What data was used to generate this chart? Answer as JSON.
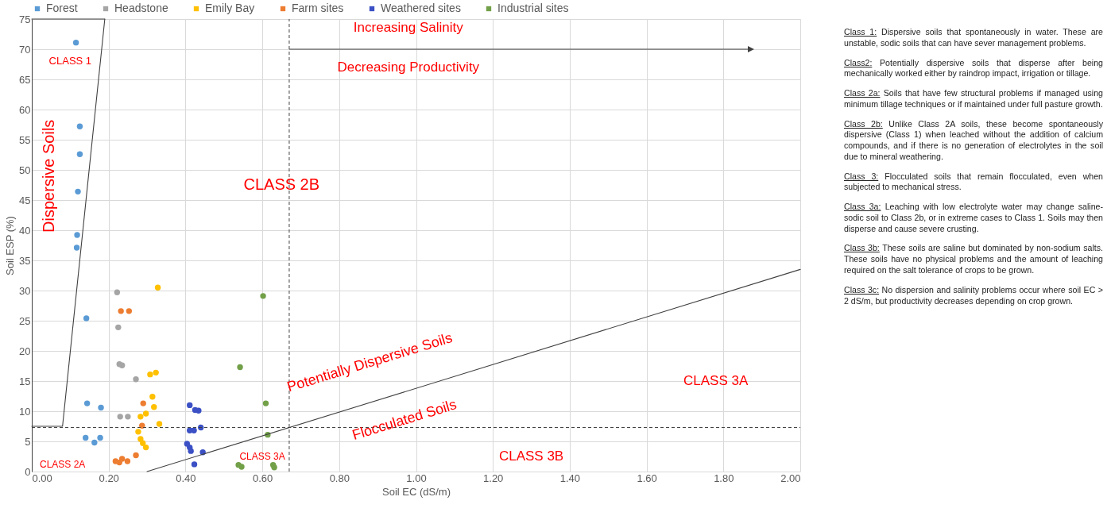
{
  "chart_data": {
    "type": "scatter",
    "xlabel": "Soil EC (dS/m)",
    "ylabel": "Soil ESP (%)",
    "xlim": [
      0,
      2
    ],
    "ylim": [
      0,
      75
    ],
    "xticks": [
      {
        "value": 0,
        "label": "0.00"
      },
      {
        "value": 0.2,
        "label": "0.20"
      },
      {
        "value": 0.4,
        "label": "0.40"
      },
      {
        "value": 0.6,
        "label": "0.60"
      },
      {
        "value": 0.8,
        "label": "0.80"
      },
      {
        "value": 1,
        "label": "1.00"
      },
      {
        "value": 1.2,
        "label": "1.20"
      },
      {
        "value": 1.4,
        "label": "1.40"
      },
      {
        "value": 1.6,
        "label": "1.60"
      },
      {
        "value": 1.8,
        "label": "1.80"
      },
      {
        "value": 2,
        "label": "2.00"
      }
    ],
    "yticks": [
      0,
      5,
      10,
      15,
      20,
      25,
      30,
      35,
      40,
      45,
      50,
      55,
      60,
      65,
      70,
      75
    ],
    "grid": true,
    "legend": "top",
    "marker": "circle",
    "series": [
      {
        "name": "Forest",
        "color": "#5b9bd5",
        "x": [
          0.115,
          0.125,
          0.125,
          0.12,
          0.118,
          0.117,
          0.142,
          0.144,
          0.18,
          0.14,
          0.163,
          0.178
        ],
        "values": [
          71.1,
          57.2,
          52.6,
          46.4,
          39.2,
          37.1,
          25.4,
          11.3,
          10.6,
          5.6,
          4.8,
          5.6
        ]
      },
      {
        "name": "Headstone",
        "color": "#a5a5a5",
        "x": [
          0.222,
          0.225,
          0.228,
          0.235,
          0.271,
          0.23,
          0.25
        ],
        "values": [
          29.7,
          23.9,
          17.8,
          17.6,
          15.3,
          9.1,
          9.1
        ]
      },
      {
        "name": "Emily Bay",
        "color": "#ffc000",
        "x": [
          0.328,
          0.308,
          0.323,
          0.314,
          0.318,
          0.283,
          0.297,
          0.332,
          0.277,
          0.283,
          0.289,
          0.297
        ],
        "values": [
          30.5,
          16.1,
          16.4,
          12.4,
          10.7,
          9.1,
          9.6,
          7.9,
          6.6,
          5.4,
          4.7,
          4.0
        ]
      },
      {
        "name": "Farm sites",
        "color": "#ed7d31",
        "x": [
          0.232,
          0.253,
          0.29,
          0.287,
          0.271,
          0.218,
          0.235,
          0.249,
          0.228
        ],
        "values": [
          26.6,
          26.6,
          11.3,
          7.6,
          2.7,
          1.7,
          2.1,
          1.7,
          1.5
        ]
      },
      {
        "name": "Weathered sites",
        "color": "#3b50c4",
        "x": [
          0.411,
          0.425,
          0.434,
          0.411,
          0.422,
          0.44,
          0.404,
          0.411,
          0.414,
          0.445,
          0.423
        ],
        "values": [
          11.0,
          10.2,
          10.1,
          6.8,
          6.8,
          7.3,
          4.6,
          4.0,
          3.4,
          3.2,
          1.2
        ]
      },
      {
        "name": "Industrial sites",
        "color": "#72a048",
        "x": [
          0.602,
          0.542,
          0.609,
          0.614,
          0.538,
          0.546,
          0.628,
          0.631
        ],
        "values": [
          29.1,
          17.3,
          11.3,
          6.1,
          1.1,
          0.8,
          1.1,
          0.7
        ]
      },
      {
        "type": "line",
        "color": "#404040",
        "line_style": "solid",
        "marker": "none",
        "x": [
          0,
          0.08,
          0.19
        ],
        "values": [
          7.5,
          7.5,
          75
        ]
      },
      {
        "type": "line",
        "color": "#404040",
        "line_style": "solid",
        "marker": "none",
        "x": [
          0,
          0.19
        ],
        "values": [
          75,
          75
        ]
      },
      {
        "type": "line",
        "color": "#404040",
        "line_style": "solid",
        "marker": "none",
        "x": [
          0.3,
          2.0
        ],
        "values": [
          0,
          33.5
        ]
      }
    ],
    "ref_lines": [
      {
        "axis": "y",
        "value": 7.3,
        "color": "#404040",
        "line_style": "dashed"
      },
      {
        "axis": "x",
        "value": 0.67,
        "color": "#404040",
        "line_style": "dashed"
      }
    ],
    "annotations": [
      "CLASS 1",
      "Dispersive Soils",
      "CLASS 2B",
      "Increasing Salinity",
      "Decreasing Productivity",
      "Potentially Dispersive Soils",
      "Flocculated Soils",
      "CLASS 3A",
      "CLASS 3A",
      "CLASS 2A",
      "CLASS 3B",
      "Class 1: Dispersive soils that spontaneously in water. These are unstable, sodic soils that can have sever management problems.",
      "Class2: Potentially dispersive soils that disperse after being mechanically worked either by raindrop impact, irrigation or tillage.",
      "Class 2a: Soils that have few structural problems if managed using minimum tillage techniques or if maintained under full pasture growth.",
      "Class 2b: Unlike Class 2A soils, these become spontaneously dispersive (Class 1) when leached without the addition of calcium compounds, and if there is no generation of electrolytes in the soil due to mineral weathering.",
      "Class 3: Flocculated soils that remain flocculated, even when subjected to mechanical stress.",
      "Class 3a: Leaching with low electrolyte water may change saline-sodic soil to Class 2b, or in extreme cases to Class 1. Soils may then disperse and cause severe crusting.",
      "Class 3b: These soils are saline but dominated by non-sodium salts. These soils have no physical problems and the amount of leaching required on the salt tolerance of crops to be grown.",
      "Class 3c: No dispersion and salinity problems occur where soil EC > 2 dS/m, but productivity decreases depending on crop grown."
    ]
  }
}
